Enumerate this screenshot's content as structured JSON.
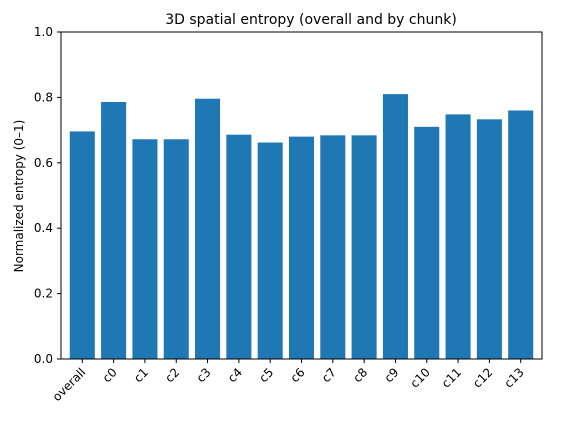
{
  "chart_data": {
    "type": "bar",
    "title": "3D spatial entropy (overall and by chunk)",
    "xlabel": "",
    "ylabel": "Normalized entropy (0–1)",
    "ylim": [
      0,
      1.0
    ],
    "yticks": [
      "0.0",
      "0.2",
      "0.4",
      "0.6",
      "0.8",
      "1.0"
    ],
    "grid": false,
    "categories": [
      "overall",
      "c0",
      "c1",
      "c2",
      "c3",
      "c4",
      "c5",
      "c6",
      "c7",
      "c8",
      "c9",
      "c10",
      "c11",
      "c12",
      "c13"
    ],
    "values": [
      0.696,
      0.786,
      0.672,
      0.672,
      0.796,
      0.686,
      0.662,
      0.68,
      0.684,
      0.684,
      0.81,
      0.71,
      0.748,
      0.733,
      0.76
    ],
    "bar_color": "#1f77b4"
  }
}
